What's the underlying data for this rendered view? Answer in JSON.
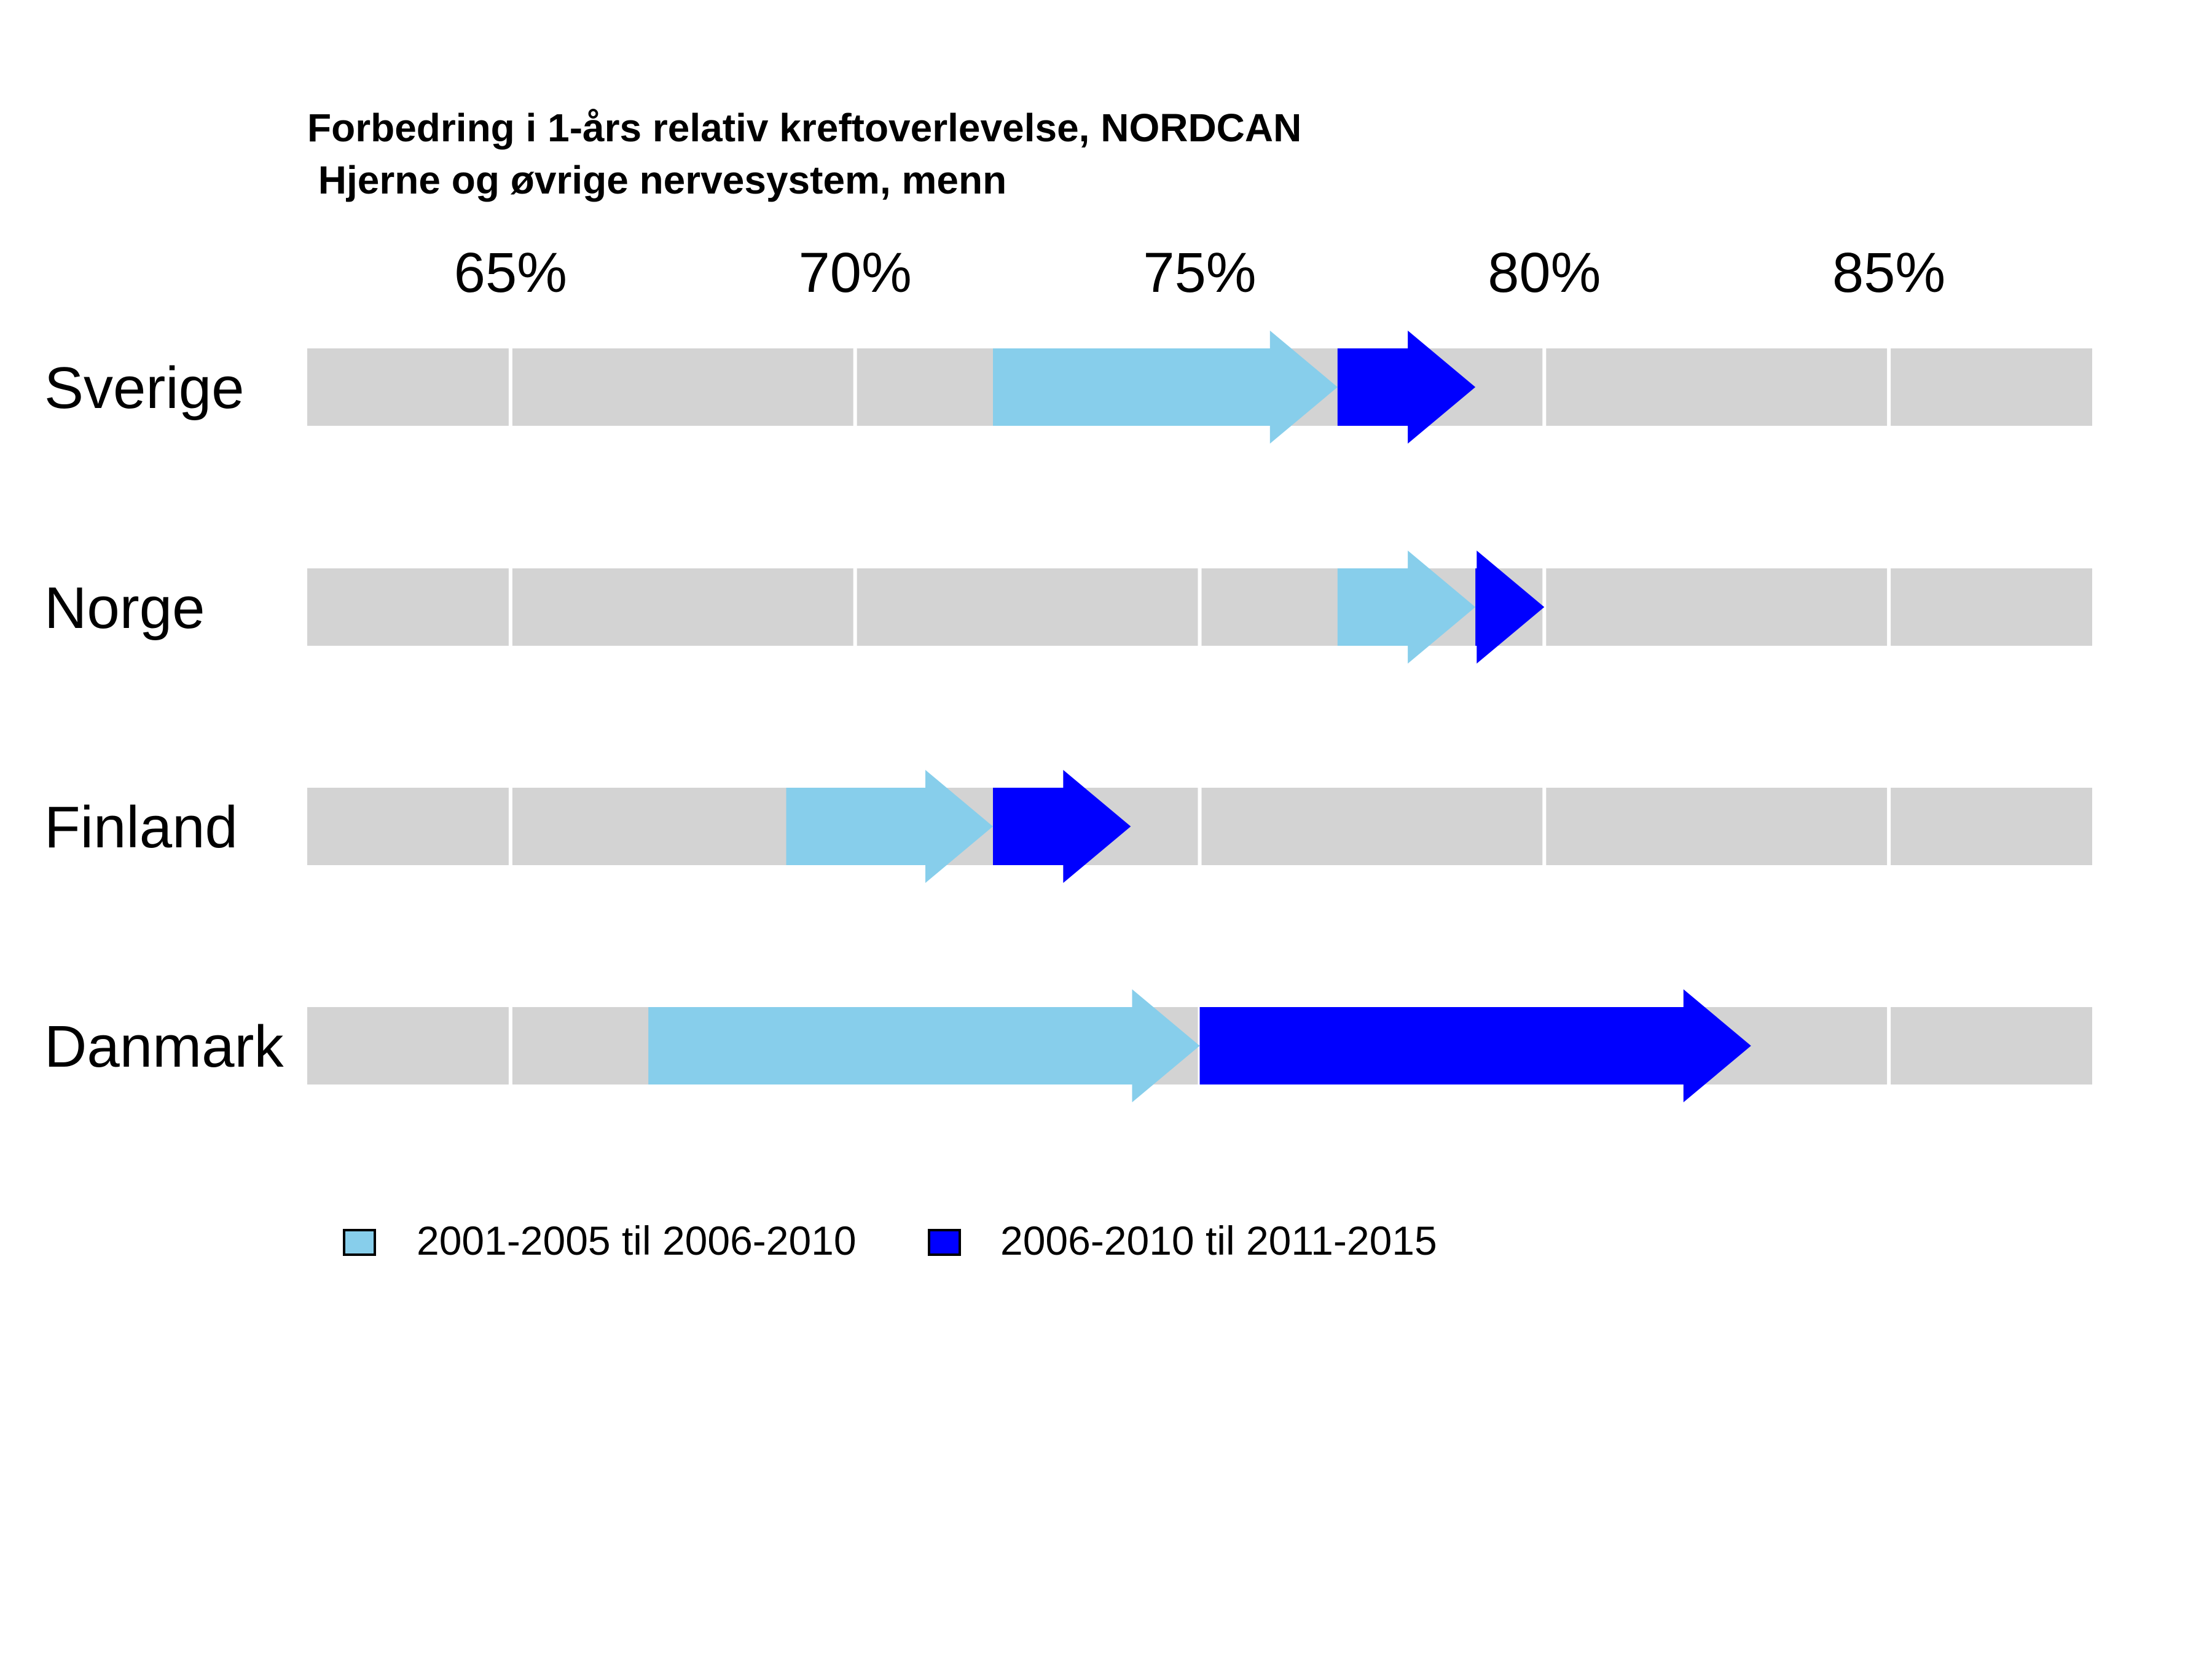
{
  "chart_data": {
    "type": "arrow-range",
    "title": "Forbedring i 1-års relativ kreftoverlevelse, NORDCAN",
    "subtitle": " Hjerne og øvrige nervesystem, menn",
    "x_ticks": [
      65,
      70,
      75,
      80,
      85
    ],
    "x_tick_labels": [
      "65%",
      "70%",
      "75%",
      "80%",
      "85%"
    ],
    "xlim": [
      62.05,
      87.95
    ],
    "legend_position": "bottom-left",
    "series": [
      {
        "name": "2001-2005 til 2006-2010",
        "color": "#87CEEB"
      },
      {
        "name": "2006-2010 til 2011-2015",
        "color": "#0000FF"
      }
    ],
    "countries": [
      {
        "name": "Sverige",
        "s2001_2005": 72.0,
        "s2006_2010": 77.0,
        "s2011_2015": 79.0
      },
      {
        "name": "Norge",
        "s2001_2005": 77.0,
        "s2006_2010": 79.0,
        "s2011_2015": 80.0
      },
      {
        "name": "Finland",
        "s2001_2005": 69.0,
        "s2006_2010": 72.0,
        "s2011_2015": 74.0
      },
      {
        "name": "Danmark",
        "s2001_2005": 67.0,
        "s2006_2010": 75.0,
        "s2011_2015": 83.0
      }
    ],
    "background_bar_color": "#D3D3D3",
    "grid": true
  }
}
